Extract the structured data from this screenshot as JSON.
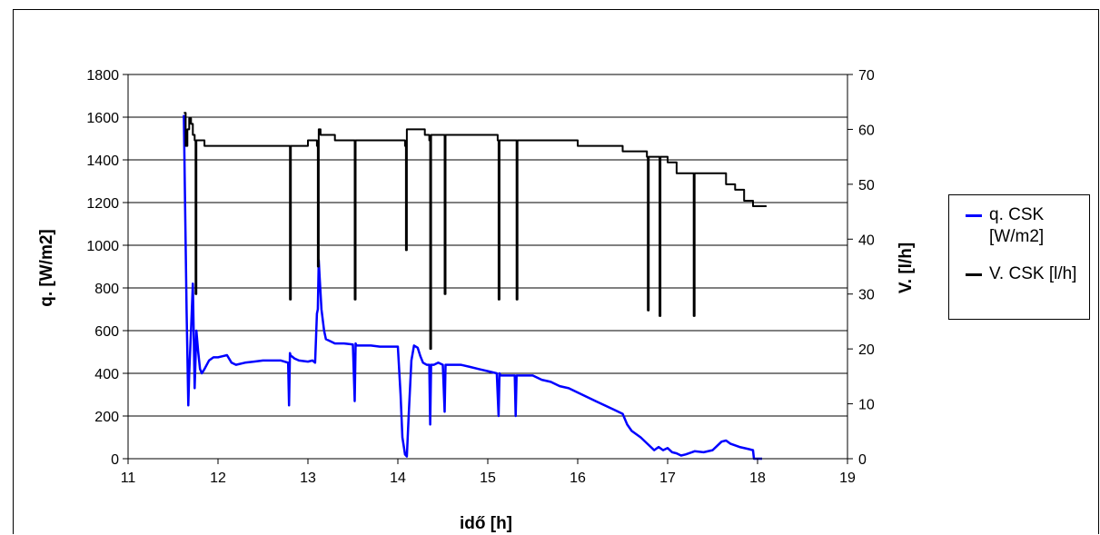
{
  "chart_data": {
    "type": "line",
    "title": "",
    "xlabel": "idő [h]",
    "ylabel": "q. [W/m2]",
    "y2label": "V. [l/h]",
    "xlim": [
      11,
      19
    ],
    "ylim": [
      0,
      1800
    ],
    "y2lim": [
      0,
      70
    ],
    "xticks": [
      "11",
      "12",
      "13",
      "14",
      "15",
      "16",
      "17",
      "18",
      "19"
    ],
    "yticks": [
      "0",
      "200",
      "400",
      "600",
      "800",
      "1000",
      "1200",
      "1400",
      "1600",
      "1800"
    ],
    "y2ticks": [
      "0",
      "10",
      "20",
      "30",
      "40",
      "50",
      "60",
      "70"
    ],
    "grid": "horizontal",
    "legend_position": "right",
    "series": [
      {
        "name": "q. CSK [W/m2]",
        "color": "#0000ff",
        "axis": "left",
        "x": [
          11.62,
          11.63,
          11.65,
          11.67,
          11.68,
          11.7,
          11.72,
          11.74,
          11.76,
          11.78,
          11.8,
          11.82,
          11.85,
          11.9,
          11.95,
          12.0,
          12.05,
          12.1,
          12.15,
          12.2,
          12.3,
          12.4,
          12.5,
          12.6,
          12.7,
          12.78,
          12.79,
          12.8,
          12.81,
          12.82,
          12.85,
          12.9,
          13.0,
          13.05,
          13.08,
          13.1,
          13.11,
          13.12,
          13.13,
          13.15,
          13.18,
          13.2,
          13.25,
          13.3,
          13.4,
          13.5,
          13.52,
          13.53,
          13.54,
          13.6,
          13.7,
          13.8,
          13.9,
          14.0,
          14.03,
          14.05,
          14.08,
          14.1,
          14.12,
          14.15,
          14.18,
          14.22,
          14.25,
          14.28,
          14.32,
          14.35,
          14.36,
          14.37,
          14.38,
          14.4,
          14.45,
          14.5,
          14.52,
          14.53,
          14.54,
          14.6,
          14.7,
          14.8,
          14.9,
          15.0,
          15.1,
          15.12,
          15.13,
          15.14,
          15.2,
          15.3,
          15.31,
          15.32,
          15.35,
          15.5,
          15.6,
          15.7,
          15.8,
          15.9,
          16.0,
          16.1,
          16.2,
          16.3,
          16.4,
          16.5,
          16.55,
          16.6,
          16.7,
          16.8,
          16.85,
          16.9,
          16.95,
          17.0,
          17.05,
          17.1,
          17.15,
          17.2,
          17.3,
          17.4,
          17.5,
          17.6,
          17.65,
          17.7,
          17.8,
          17.9,
          17.95,
          17.96,
          18.05
        ],
        "y": [
          1610,
          1300,
          700,
          250,
          400,
          600,
          820,
          330,
          600,
          500,
          420,
          400,
          420,
          460,
          475,
          475,
          480,
          485,
          450,
          440,
          450,
          455,
          460,
          460,
          460,
          450,
          250,
          495,
          480,
          480,
          470,
          460,
          455,
          460,
          450,
          680,
          700,
          930,
          850,
          700,
          600,
          560,
          550,
          540,
          540,
          535,
          270,
          540,
          530,
          530,
          530,
          525,
          525,
          525,
          300,
          100,
          20,
          10,
          200,
          460,
          530,
          520,
          480,
          450,
          440,
          440,
          160,
          440,
          440,
          440,
          450,
          440,
          220,
          440,
          440,
          440,
          440,
          430,
          420,
          410,
          400,
          200,
          400,
          390,
          390,
          390,
          200,
          390,
          390,
          390,
          370,
          360,
          340,
          330,
          310,
          290,
          270,
          250,
          230,
          210,
          160,
          130,
          100,
          60,
          40,
          55,
          40,
          50,
          30,
          25,
          15,
          20,
          35,
          30,
          40,
          80,
          85,
          70,
          55,
          45,
          40,
          0,
          0
        ]
      },
      {
        "name": "V. CSK [l/h]",
        "color": "#000000",
        "axis": "right",
        "x": [
          11.62,
          11.64,
          11.66,
          11.68,
          11.7,
          11.72,
          11.74,
          11.75,
          11.76,
          11.77,
          11.8,
          11.85,
          11.9,
          12.0,
          12.2,
          12.4,
          12.6,
          12.79,
          12.8,
          12.81,
          12.9,
          13.0,
          13.1,
          13.11,
          13.12,
          13.14,
          13.3,
          13.5,
          13.52,
          13.53,
          13.54,
          13.7,
          13.9,
          14.08,
          14.09,
          14.1,
          14.15,
          14.3,
          14.35,
          14.36,
          14.37,
          14.5,
          14.52,
          14.53,
          14.54,
          14.8,
          15.11,
          15.12,
          15.13,
          15.31,
          15.32,
          15.33,
          15.5,
          15.8,
          16.0,
          16.3,
          16.5,
          16.7,
          16.77,
          16.78,
          16.79,
          16.9,
          16.91,
          16.92,
          17.0,
          17.1,
          17.2,
          17.28,
          17.29,
          17.3,
          17.45,
          17.55,
          17.65,
          17.75,
          17.85,
          17.95,
          18.1
        ],
        "y": [
          63,
          57,
          60,
          62,
          61,
          59,
          58,
          30,
          58,
          58,
          58,
          57,
          57,
          57,
          57,
          57,
          57,
          57,
          29,
          57,
          57,
          58,
          57,
          35,
          60,
          59,
          58,
          58,
          29,
          58,
          58,
          58,
          58,
          57,
          38,
          60,
          60,
          59,
          58,
          20,
          59,
          59,
          30,
          59,
          59,
          59,
          58,
          29,
          58,
          58,
          29,
          58,
          58,
          58,
          57,
          57,
          56,
          56,
          55,
          27,
          55,
          55,
          26,
          55,
          54,
          52,
          52,
          52,
          26,
          52,
          52,
          52,
          50,
          49,
          47,
          46,
          46
        ]
      }
    ]
  }
}
